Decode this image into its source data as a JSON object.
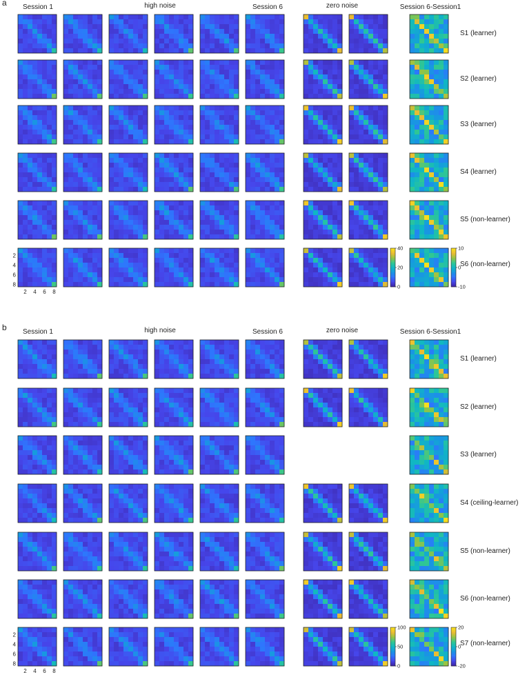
{
  "chart_data": [
    {
      "type": "heatmap",
      "panel": "a",
      "column_headers": {
        "session_1": "Session 1",
        "high_noise": "high noise",
        "session_6": "Session 6",
        "zero_noise": "zero noise",
        "diff": "Session 6-Session1"
      },
      "subjects": [
        "S1 (learner)",
        "S2 (learner)",
        "S3 (learner)",
        "S4 (learner)",
        "S5 (non-learner)",
        "S6 (non-learner)"
      ],
      "high_noise_sessions_per_row": [
        6,
        6,
        6,
        6,
        6,
        6
      ],
      "zero_noise_sessions_per_row": [
        2,
        2,
        2,
        2,
        2,
        2
      ],
      "matrix_size": 8,
      "axis_ticks": [
        "2",
        "4",
        "6",
        "8"
      ],
      "colorbar_confusion": {
        "ticks": [
          "40",
          "20",
          "0"
        ],
        "range": [
          0,
          40
        ]
      },
      "colorbar_diff": {
        "ticks": [
          "10",
          "0",
          "-10"
        ],
        "range": [
          -10,
          10
        ]
      }
    },
    {
      "type": "heatmap",
      "panel": "b",
      "column_headers": {
        "session_1": "Session 1",
        "high_noise": "high noise",
        "session_6": "Session 6",
        "zero_noise": "zero noise",
        "diff": "Session 6-Session1"
      },
      "subjects": [
        "S1 (learner)",
        "S2 (learner)",
        "S3 (learner)",
        "S4 (ceiling-learner)",
        "S5 (non-learner)",
        "S6 (non-learner)",
        "S7 (non-learner)"
      ],
      "high_noise_sessions_per_row": [
        6,
        6,
        6,
        6,
        6,
        6,
        6
      ],
      "zero_noise_sessions_per_row": [
        2,
        2,
        0,
        2,
        2,
        2,
        2
      ],
      "matrix_size": 8,
      "axis_ticks": [
        "2",
        "4",
        "6",
        "8"
      ],
      "colorbar_confusion": {
        "ticks": [
          "100",
          "50",
          "0"
        ],
        "range": [
          0,
          100
        ]
      },
      "colorbar_diff": {
        "ticks": [
          "20",
          "0",
          "-20"
        ],
        "range": [
          -20,
          20
        ]
      }
    }
  ],
  "panel_labels": [
    "a",
    "b"
  ],
  "colors": {
    "low": "#3e26a8",
    "high": "#f9e11c",
    "colormap": "parula"
  }
}
